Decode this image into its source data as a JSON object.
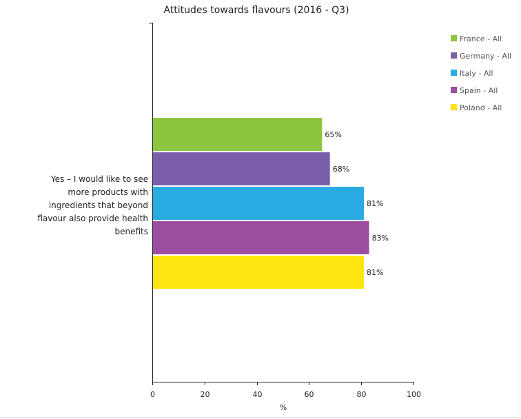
{
  "chart_data": {
    "type": "bar",
    "orientation": "horizontal",
    "title": "Attitudes towards flavours (2016 - Q3)",
    "xlabel": "%",
    "ylabel": "",
    "xlim": [
      0,
      100
    ],
    "x_ticks": [
      0,
      20,
      40,
      60,
      80,
      100
    ],
    "grid": false,
    "legend_position": "top-right",
    "categories": [
      "Yes – I would like to see more products with ingredients that beyond flavour also provide health benefits"
    ],
    "category_lines": [
      "Yes – I would like to see",
      "more products with",
      "ingredients that beyond",
      "flavour also provide health",
      "benefits"
    ],
    "series": [
      {
        "name": "France - All",
        "color": "#8cc63f",
        "values": [
          65
        ],
        "labels": [
          "65%"
        ]
      },
      {
        "name": "Germany - All",
        "color": "#7b5eaa",
        "values": [
          68
        ],
        "labels": [
          "68%"
        ]
      },
      {
        "name": "Italy - All",
        "color": "#29abe2",
        "values": [
          81
        ],
        "labels": [
          "81%"
        ]
      },
      {
        "name": "Spain - All",
        "color": "#9b4d9f",
        "values": [
          83
        ],
        "labels": [
          "83%"
        ]
      },
      {
        "name": "Poland - All",
        "color": "#ffe50f",
        "values": [
          81
        ],
        "labels": [
          "81%"
        ]
      }
    ]
  }
}
